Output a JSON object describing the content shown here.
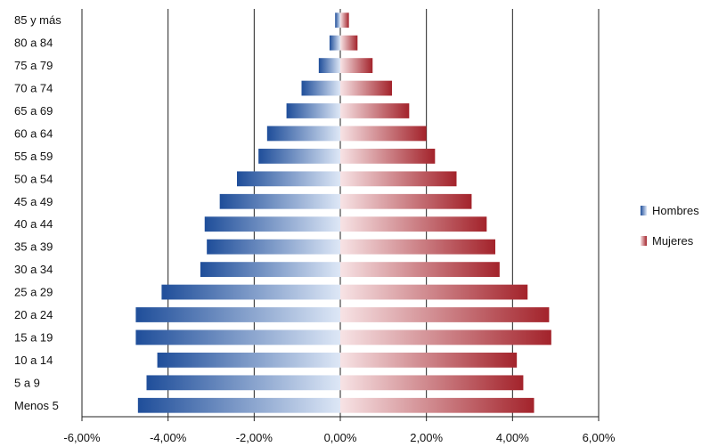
{
  "chart_data": {
    "type": "bar",
    "orientation": "horizontal",
    "title": "",
    "xlabel": "",
    "ylabel": "",
    "categories": [
      "Menos 5",
      "5 a 9",
      "10 a 14",
      "15 a 19",
      "20 a 24",
      "25 a 29",
      "30 a 34",
      "35 a 39",
      "40 a 44",
      "45 a 49",
      "50 a 54",
      "55 a 59",
      "60 a 64",
      "65 a 69",
      "70 a 74",
      "75 a 79",
      "80 a 84",
      "85 y más"
    ],
    "series": [
      {
        "name": "Hombres",
        "color": "#1f4e9a",
        "values": [
          -4.7,
          -4.5,
          -4.25,
          -4.75,
          -4.75,
          -4.15,
          -3.25,
          -3.1,
          -3.15,
          -2.8,
          -2.4,
          -1.9,
          -1.7,
          -1.25,
          -0.9,
          -0.5,
          -0.25,
          -0.12
        ]
      },
      {
        "name": "Mujeres",
        "color": "#a3232b",
        "values": [
          4.5,
          4.25,
          4.1,
          4.9,
          4.85,
          4.35,
          3.7,
          3.6,
          3.4,
          3.05,
          2.7,
          2.2,
          2.0,
          1.6,
          1.2,
          0.75,
          0.4,
          0.2
        ]
      }
    ],
    "xlim": [
      -6,
      6
    ],
    "xticks": [
      "-6,00%",
      "-4,00%",
      "-2,00%",
      "0,00%",
      "2,00%",
      "4,00%",
      "6,00%"
    ],
    "grid": "vertical",
    "legend_position": "right"
  }
}
